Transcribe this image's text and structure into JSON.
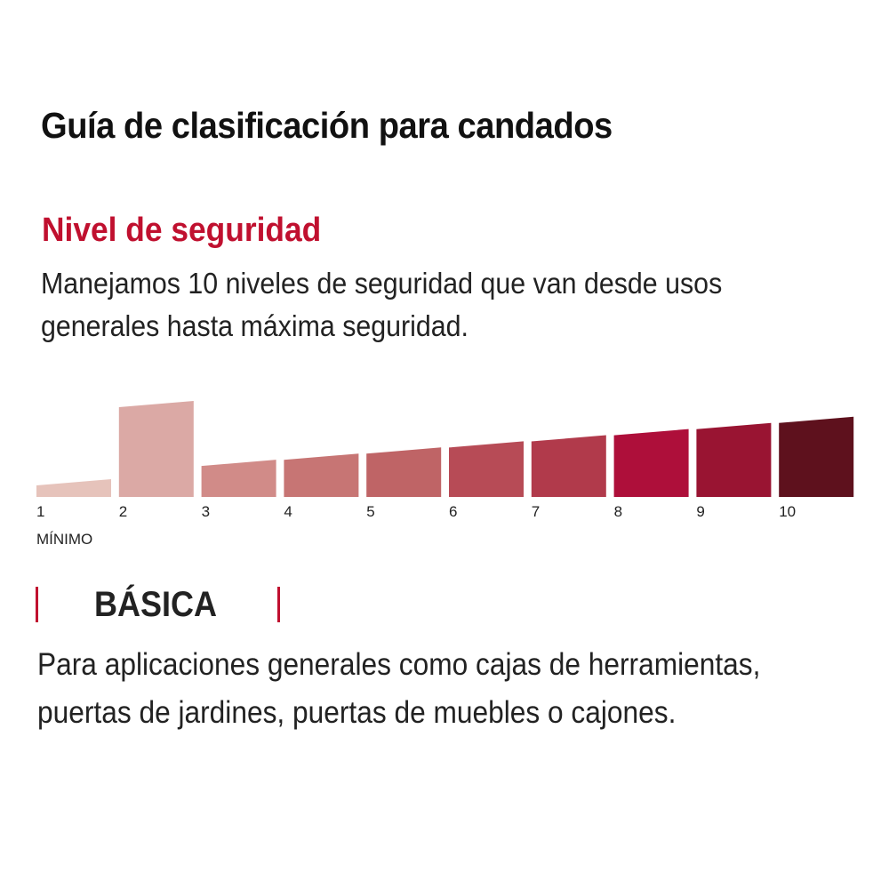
{
  "title": "Guía de clasificación para candados",
  "section": {
    "heading": "Nivel de seguridad",
    "description_lines": [
      "Manejamos 10 niveles de seguridad que van desde usos",
      "generales hasta máxima seguridad."
    ]
  },
  "scale": {
    "selected_level": 2,
    "min_label": "MÍNIMO",
    "levels": [
      {
        "label": "1",
        "color": "#e6c3bb"
      },
      {
        "label": "2",
        "color": "#dba9a5"
      },
      {
        "label": "3",
        "color": "#d18b88"
      },
      {
        "label": "4",
        "color": "#c77574"
      },
      {
        "label": "5",
        "color": "#bf6466"
      },
      {
        "label": "6",
        "color": "#b74b56"
      },
      {
        "label": "7",
        "color": "#b13a4b"
      },
      {
        "label": "8",
        "color": "#ae0f3a"
      },
      {
        "label": "9",
        "color": "#991432"
      },
      {
        "label": "10",
        "color": "#5e111d"
      }
    ]
  },
  "category": {
    "name": "BÁSICA",
    "description_lines": [
      "Para aplicaciones generales como cajas de herramientas,",
      "puertas de jardines, puertas de muebles o cajones."
    ]
  },
  "colors": {
    "accent": "#c0102f",
    "text": "#222222"
  }
}
